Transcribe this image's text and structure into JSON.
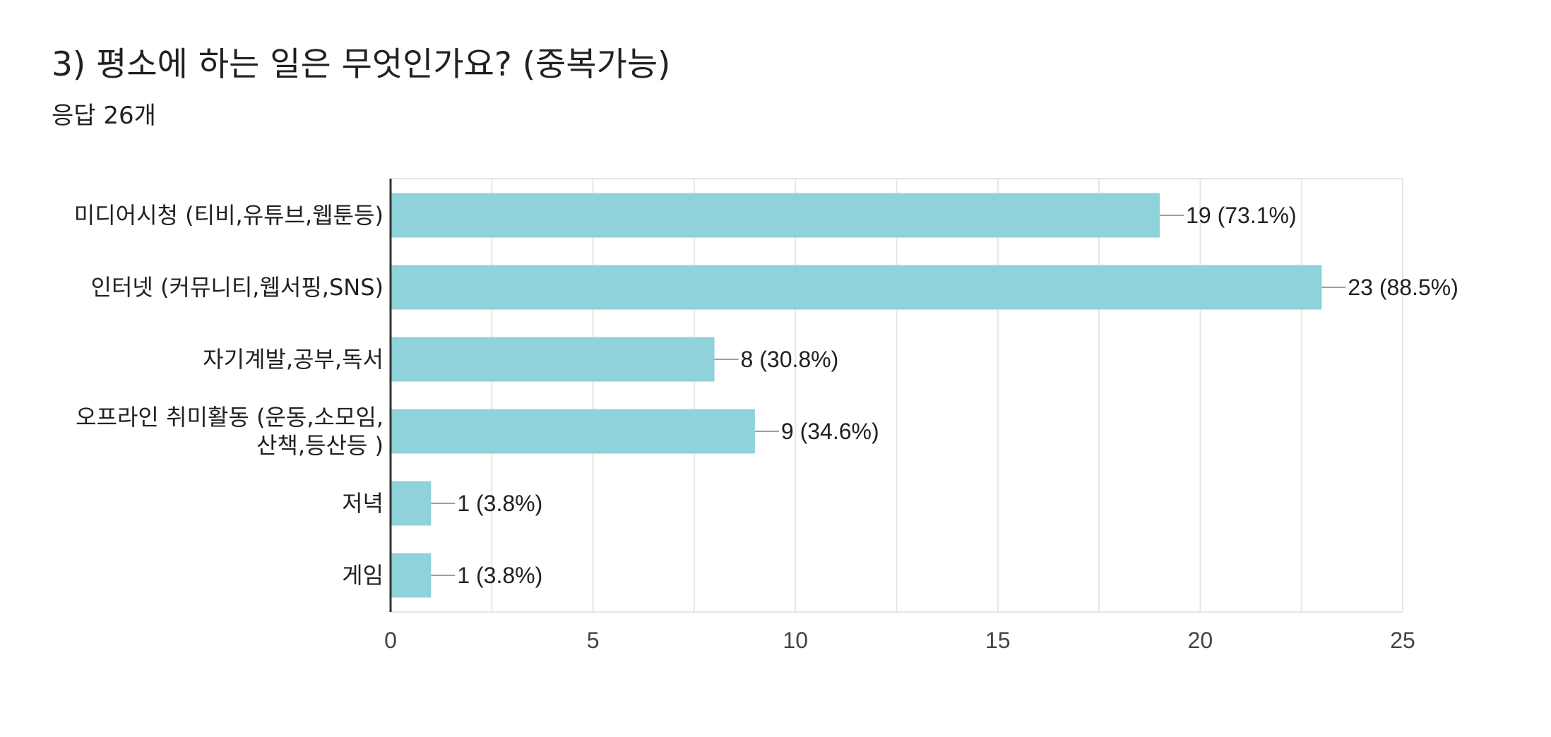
{
  "header": {
    "title": "3) 평소에 하는 일은 무엇인가요?  (중복가능)",
    "subtitle": "응답 26개"
  },
  "colors": {
    "bar": "#8fd2d9",
    "axis": "#333333",
    "grid": "#e6e6e6",
    "connector": "#9e9e9e"
  },
  "chart_data": {
    "type": "bar",
    "orientation": "horizontal",
    "title": "3) 평소에 하는 일은 무엇인가요?  (중복가능)",
    "subtitle": "응답 26개",
    "categories": [
      [
        "미디어시청 (티비,유튜브,웹툰등)"
      ],
      [
        "인터넷 (커뮤니티,웹서핑,SNS)"
      ],
      [
        "자기계발,공부,독서"
      ],
      [
        "오프라인 취미활동 (운동,소모임,",
        "산책,등산등 )"
      ],
      [
        "저녁"
      ],
      [
        "게임"
      ]
    ],
    "values": [
      19,
      23,
      8,
      9,
      1,
      1
    ],
    "value_labels": [
      "19 (73.1%)",
      "23 (88.5%)",
      "8 (30.8%)",
      "9 (34.6%)",
      "1 (3.8%)",
      "1 (3.8%)"
    ],
    "xlim": [
      0,
      25
    ],
    "xticks": [
      0,
      5,
      10,
      15,
      20,
      25
    ],
    "minor_grid_step": 2.5,
    "grid": true,
    "legend": "none"
  }
}
